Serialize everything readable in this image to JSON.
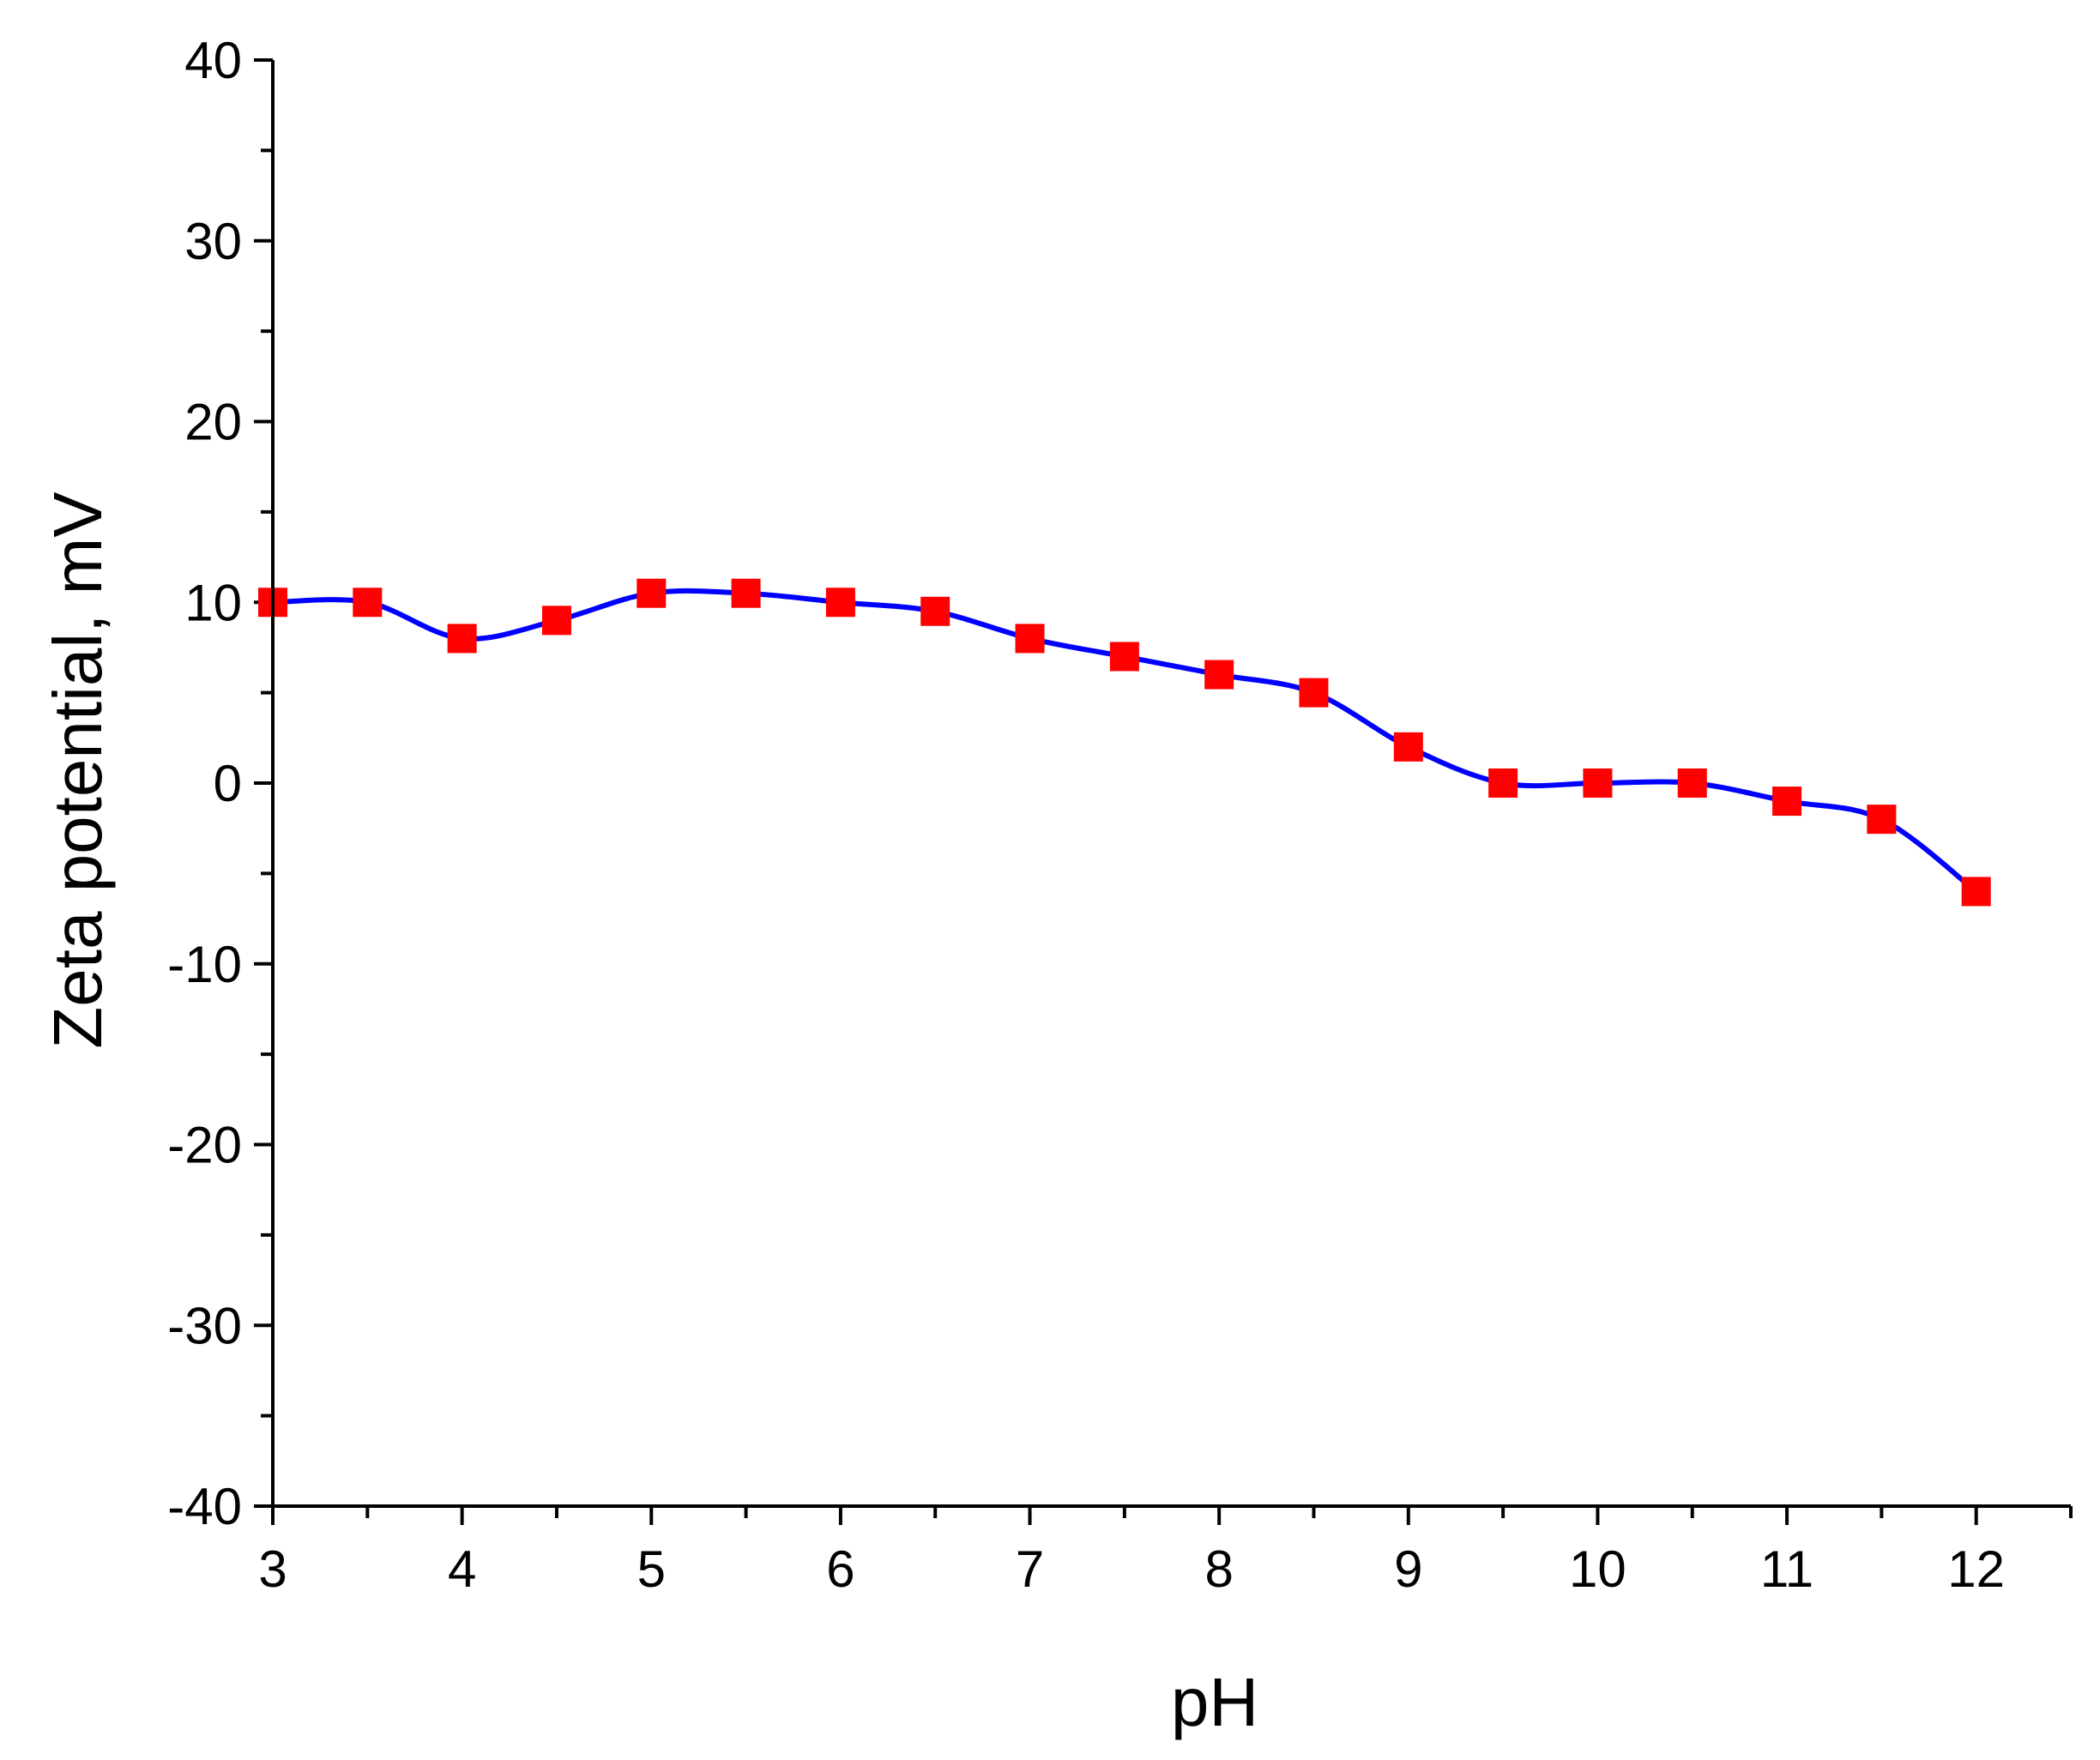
{
  "chart_data": {
    "type": "line",
    "title": "",
    "xlabel": "pH",
    "ylabel": "Zeta potential, mV",
    "xlim": [
      3,
      12.5
    ],
    "ylim": [
      -40,
      40
    ],
    "x_ticks": [
      3,
      4,
      5,
      6,
      7,
      8,
      9,
      10,
      11,
      12
    ],
    "y_ticks": [
      -40,
      -30,
      -20,
      -10,
      0,
      10,
      20,
      30,
      40
    ],
    "grid": false,
    "legend": "none",
    "series": [
      {
        "x": [
          3,
          3.5,
          4,
          4.5,
          5,
          5.5,
          6,
          6.5,
          7,
          7.5,
          8,
          8.5,
          9,
          9.5,
          10,
          10.5,
          11,
          11.5,
          12
        ],
        "y": [
          10,
          10,
          8,
          9,
          10.5,
          10.5,
          10,
          9.5,
          8,
          7,
          6,
          5,
          2,
          0,
          0,
          0,
          -1,
          -2,
          -6
        ],
        "line_color": "#0000FF",
        "marker": "square",
        "marker_color": "#FF0000"
      }
    ]
  }
}
